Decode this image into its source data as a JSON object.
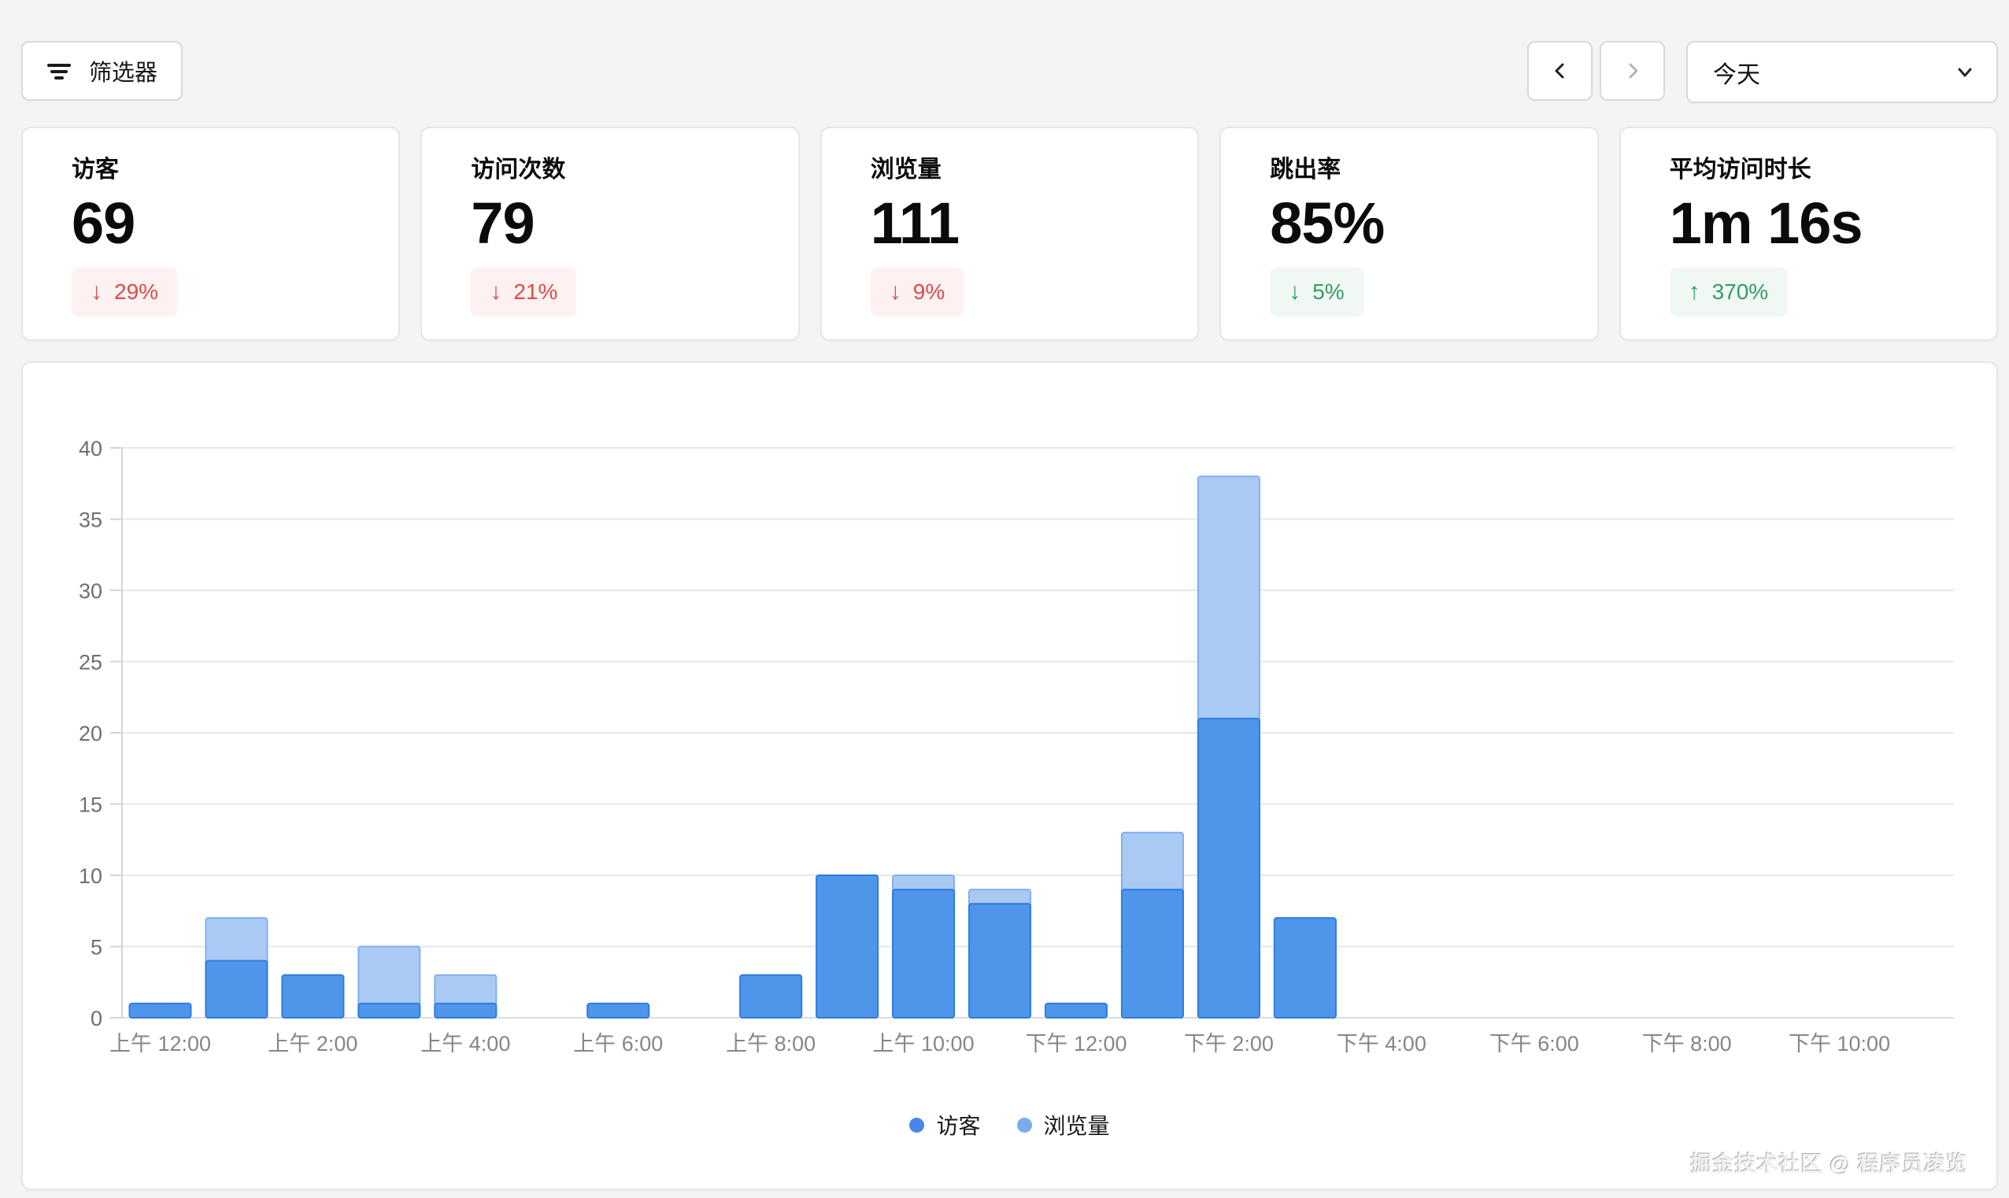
{
  "toolbar": {
    "filter_label": "筛选器",
    "date_range_value": "今天"
  },
  "stats": {
    "cards": [
      {
        "label": "访客",
        "value": "69",
        "arrow": "↓",
        "change": "29%",
        "sentiment": "negative"
      },
      {
        "label": "访问次数",
        "value": "79",
        "arrow": "↓",
        "change": "21%",
        "sentiment": "negative"
      },
      {
        "label": "浏览量",
        "value": "111",
        "arrow": "↓",
        "change": "9%",
        "sentiment": "negative"
      },
      {
        "label": "跳出率",
        "value": "85%",
        "arrow": "↓",
        "change": "5%",
        "sentiment": "positive"
      },
      {
        "label": "平均访问时长",
        "value": "1m 16s",
        "arrow": "↑",
        "change": "370%",
        "sentiment": "positive"
      }
    ]
  },
  "chart_data": {
    "type": "bar",
    "mode": "overlaid",
    "x_unit": "hour",
    "hours": 24,
    "x_tick_every_hours": 2,
    "x_tick_labels": [
      "上午 12:00",
      "上午 2:00",
      "上午 4:00",
      "上午 6:00",
      "上午 8:00",
      "上午 10:00",
      "下午 12:00",
      "下午 2:00",
      "下午 4:00",
      "下午 6:00",
      "下午 8:00",
      "下午 10:00"
    ],
    "y_ticks": [
      0,
      5,
      10,
      15,
      20,
      25,
      30,
      35,
      40
    ],
    "ylim": [
      0,
      40
    ],
    "grid": "horizontal",
    "legend_position": "bottom",
    "series": [
      {
        "name": "访客",
        "color": "#4f96ea",
        "border_color": "#2f7de1",
        "legend_dot_color": "#4688e8",
        "values": [
          1,
          4,
          3,
          1,
          1,
          0,
          1,
          0,
          3,
          10,
          9,
          8,
          1,
          9,
          21,
          7,
          0,
          0,
          0,
          0,
          0,
          0,
          0,
          0
        ]
      },
      {
        "name": "浏览量",
        "color": "#aacaf3",
        "border_color": "#7fb0f0",
        "legend_dot_color": "#7babef",
        "values": [
          1,
          7,
          3,
          5,
          3,
          0,
          1,
          0,
          3,
          10,
          10,
          9,
          1,
          13,
          38,
          7,
          0,
          0,
          0,
          0,
          0,
          0,
          0,
          0
        ]
      }
    ],
    "axis_colors": {
      "grid": "#e7e7eb",
      "zero_line": "#dcdce1",
      "tick": "#d3d3d8",
      "y_label": "#6e6e76",
      "x_label": "#85858d"
    }
  },
  "watermark": "掘金技术社区 @ 程序员凌览"
}
